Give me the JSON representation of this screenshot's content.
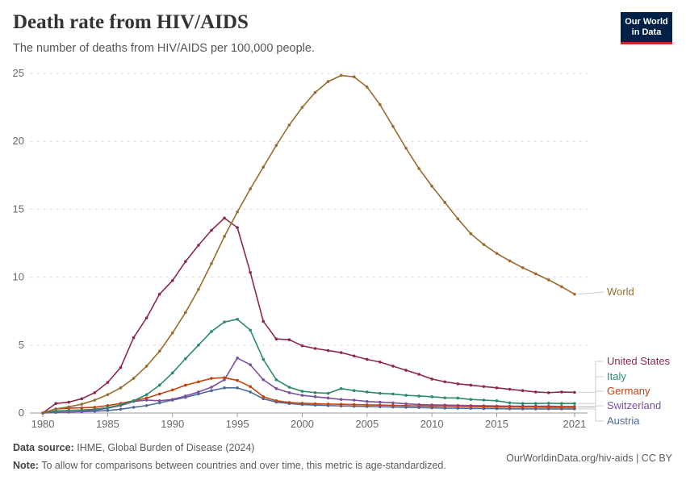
{
  "header": {
    "title": "Death rate from HIV/AIDS",
    "subtitle": "The number of deaths from HIV/AIDS per 100,000 people."
  },
  "logo": {
    "line1": "Our World",
    "line2": "in Data"
  },
  "footer": {
    "source_label": "Data source:",
    "source_text": "IHME, Global Burden of Disease (2024)",
    "url_text": "OurWorldinData.org/hiv-aids | CC BY",
    "note_label": "Note:",
    "note_text": "To allow for comparisons between countries and over time, this metric is age-standardized."
  },
  "chart_data": {
    "type": "line",
    "title": "Death rate from HIV/AIDS",
    "subtitle": "The number of deaths from HIV/AIDS per 100,000 people.",
    "x": [
      1980,
      1981,
      1982,
      1983,
      1984,
      1985,
      1986,
      1987,
      1988,
      1989,
      1990,
      1991,
      1992,
      1993,
      1994,
      1995,
      1996,
      1997,
      1998,
      1999,
      2000,
      2001,
      2002,
      2003,
      2004,
      2005,
      2006,
      2007,
      2008,
      2009,
      2010,
      2011,
      2012,
      2013,
      2014,
      2015,
      2016,
      2017,
      2018,
      2019,
      2020,
      2021
    ],
    "xlim": [
      1979,
      2022
    ],
    "ylim": [
      0,
      25
    ],
    "x_ticks": [
      1980,
      1985,
      1990,
      1995,
      2000,
      2005,
      2010,
      2015,
      2021
    ],
    "y_ticks": [
      0,
      5,
      10,
      15,
      20,
      25
    ],
    "grid": "horizontal dashed",
    "legend": "line labels at right",
    "series": [
      {
        "name": "World",
        "color": "#9a6a2f",
        "values": [
          0,
          0.3,
          0.45,
          0.65,
          0.95,
          1.35,
          1.85,
          2.55,
          3.45,
          4.55,
          5.9,
          7.4,
          9.1,
          11.0,
          13.0,
          14.8,
          16.5,
          18.1,
          19.7,
          21.2,
          22.5,
          23.6,
          24.4,
          24.85,
          24.75,
          24.0,
          22.7,
          21.1,
          19.5,
          18.0,
          16.7,
          15.5,
          14.3,
          13.2,
          12.4,
          11.75,
          11.2,
          10.7,
          10.25,
          9.8,
          9.3,
          8.75
        ]
      },
      {
        "name": "United States",
        "color": "#8c2a44",
        "values": [
          0,
          0.7,
          0.8,
          1.05,
          1.5,
          2.25,
          3.35,
          5.55,
          7.0,
          8.75,
          9.75,
          11.15,
          12.35,
          13.45,
          14.35,
          13.65,
          10.35,
          6.75,
          5.45,
          5.4,
          4.95,
          4.75,
          4.6,
          4.45,
          4.2,
          3.95,
          3.75,
          3.45,
          3.15,
          2.85,
          2.5,
          2.3,
          2.15,
          2.05,
          1.95,
          1.85,
          1.75,
          1.65,
          1.55,
          1.5,
          1.55,
          1.52
        ]
      },
      {
        "name": "Italy",
        "color": "#2c8a6a",
        "values": [
          0,
          0.15,
          0.2,
          0.22,
          0.28,
          0.4,
          0.6,
          0.9,
          1.35,
          2.05,
          2.95,
          4.0,
          5.0,
          6.0,
          6.7,
          6.9,
          6.1,
          3.95,
          2.45,
          1.9,
          1.6,
          1.5,
          1.45,
          1.8,
          1.65,
          1.55,
          1.45,
          1.4,
          1.3,
          1.25,
          1.2,
          1.12,
          1.1,
          1.0,
          0.95,
          0.9,
          0.75,
          0.7,
          0.7,
          0.72,
          0.7,
          0.7
        ]
      },
      {
        "name": "Germany",
        "color": "#c2410c",
        "values": [
          0,
          0.3,
          0.35,
          0.38,
          0.42,
          0.55,
          0.7,
          0.9,
          1.1,
          1.4,
          1.7,
          2.05,
          2.3,
          2.55,
          2.6,
          2.4,
          1.95,
          1.2,
          0.9,
          0.78,
          0.72,
          0.68,
          0.66,
          0.64,
          0.62,
          0.6,
          0.58,
          0.56,
          0.54,
          0.52,
          0.5,
          0.5,
          0.49,
          0.48,
          0.46,
          0.45,
          0.44,
          0.43,
          0.43,
          0.42,
          0.42,
          0.42
        ]
      },
      {
        "name": "Switzerland",
        "color": "#7b4ea0",
        "values": [
          0,
          0.05,
          0.08,
          0.12,
          0.2,
          0.35,
          0.55,
          0.85,
          0.95,
          0.9,
          1.0,
          1.25,
          1.55,
          1.9,
          2.45,
          4.05,
          3.55,
          2.45,
          1.8,
          1.5,
          1.3,
          1.2,
          1.1,
          1.0,
          0.95,
          0.85,
          0.8,
          0.75,
          0.68,
          0.62,
          0.6,
          0.58,
          0.56,
          0.55,
          0.53,
          0.52,
          0.5,
          0.5,
          0.5,
          0.5,
          0.48,
          0.48
        ]
      },
      {
        "name": "Austria",
        "color": "#4c6a9c",
        "values": [
          0,
          0.05,
          0.07,
          0.1,
          0.13,
          0.18,
          0.28,
          0.42,
          0.55,
          0.75,
          0.95,
          1.15,
          1.4,
          1.65,
          1.85,
          1.85,
          1.55,
          1.05,
          0.8,
          0.7,
          0.62,
          0.58,
          0.55,
          0.52,
          0.5,
          0.48,
          0.46,
          0.44,
          0.42,
          0.4,
          0.38,
          0.36,
          0.35,
          0.34,
          0.33,
          0.32,
          0.31,
          0.3,
          0.3,
          0.3,
          0.3,
          0.3
        ]
      }
    ]
  }
}
